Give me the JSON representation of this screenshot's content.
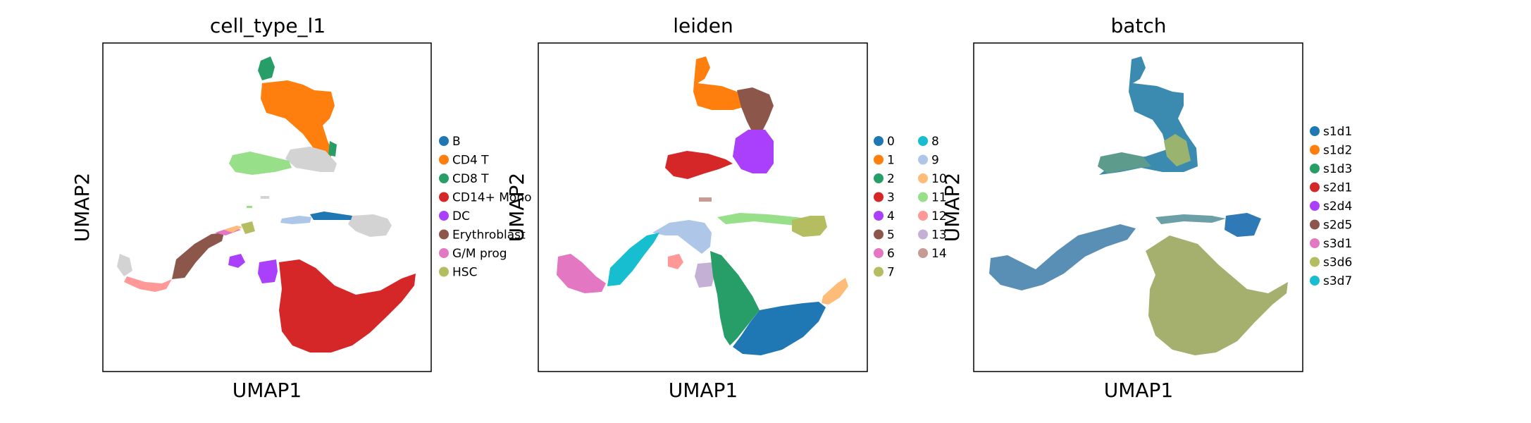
{
  "chart_data": [
    {
      "type": "scatter",
      "title": "cell_type_l1",
      "xlabel": "UMAP1",
      "ylabel": "UMAP2",
      "grid": false,
      "legend_placement": "right",
      "series": [
        {
          "name": "B",
          "color": "#1f77b4"
        },
        {
          "name": "CD4 T",
          "color": "#ff7f0e"
        },
        {
          "name": "CD8 T",
          "color": "#279e68"
        },
        {
          "name": "CD14+ Mono",
          "color": "#d62728"
        },
        {
          "name": "DC",
          "color": "#aa40fc"
        },
        {
          "name": "Erythroblast",
          "color": "#8c564b"
        },
        {
          "name": "G/M prog",
          "color": "#e377c2"
        },
        {
          "name": "HSC",
          "color": "#b5bd61"
        }
      ],
      "unlabeled_color": "#d3d3d3"
    },
    {
      "type": "scatter",
      "title": "leiden",
      "xlabel": "UMAP1",
      "ylabel": "UMAP2",
      "grid": false,
      "legend_placement": "right",
      "series": [
        {
          "name": "0",
          "color": "#1f77b4"
        },
        {
          "name": "1",
          "color": "#ff7f0e"
        },
        {
          "name": "2",
          "color": "#279e68"
        },
        {
          "name": "3",
          "color": "#d62728"
        },
        {
          "name": "4",
          "color": "#aa40fc"
        },
        {
          "name": "5",
          "color": "#8c564b"
        },
        {
          "name": "6",
          "color": "#e377c2"
        },
        {
          "name": "7",
          "color": "#b5bd61"
        },
        {
          "name": "8",
          "color": "#17becf"
        },
        {
          "name": "9",
          "color": "#aec7e8"
        },
        {
          "name": "10",
          "color": "#ffbb78"
        },
        {
          "name": "11",
          "color": "#98df8a"
        },
        {
          "name": "12",
          "color": "#ff9896"
        },
        {
          "name": "13",
          "color": "#c5b0d5"
        },
        {
          "name": "14",
          "color": "#c49c94"
        }
      ]
    },
    {
      "type": "scatter",
      "title": "batch",
      "xlabel": "UMAP1",
      "ylabel": "UMAP2",
      "grid": false,
      "legend_placement": "right",
      "series": [
        {
          "name": "s1d1",
          "color": "#1f77b4"
        },
        {
          "name": "s1d2",
          "color": "#ff7f0e"
        },
        {
          "name": "s1d3",
          "color": "#279e68"
        },
        {
          "name": "s2d1",
          "color": "#d62728"
        },
        {
          "name": "s2d4",
          "color": "#aa40fc"
        },
        {
          "name": "s2d5",
          "color": "#8c564b"
        },
        {
          "name": "s3d1",
          "color": "#e377c2"
        },
        {
          "name": "s3d6",
          "color": "#b5bd61"
        },
        {
          "name": "s3d7",
          "color": "#17becf"
        }
      ]
    }
  ]
}
